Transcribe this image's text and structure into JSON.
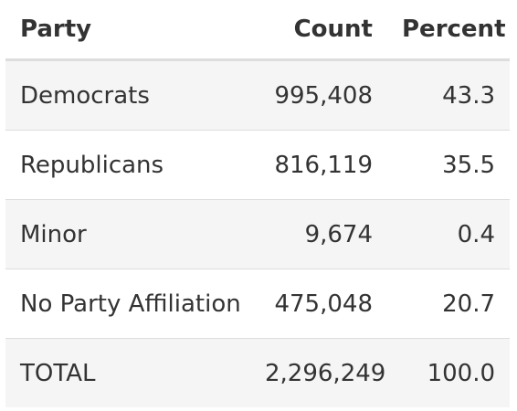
{
  "table": {
    "headers": {
      "party": "Party",
      "count": "Count",
      "percent": "Percent"
    },
    "rows": [
      {
        "party": "Democrats",
        "count": "995,408",
        "percent": "43.3"
      },
      {
        "party": "Republicans",
        "count": "816,119",
        "percent": "35.5"
      },
      {
        "party": "Minor",
        "count": "9,674",
        "percent": "0.4"
      },
      {
        "party": "No Party Affiliation",
        "count": "475,048",
        "percent": "20.7"
      },
      {
        "party": "TOTAL",
        "count": "2,296,249",
        "percent": "100.0"
      }
    ]
  },
  "colors": {
    "text": "#333333",
    "stripe": "#f5f5f5",
    "rule": "#dddddd"
  }
}
